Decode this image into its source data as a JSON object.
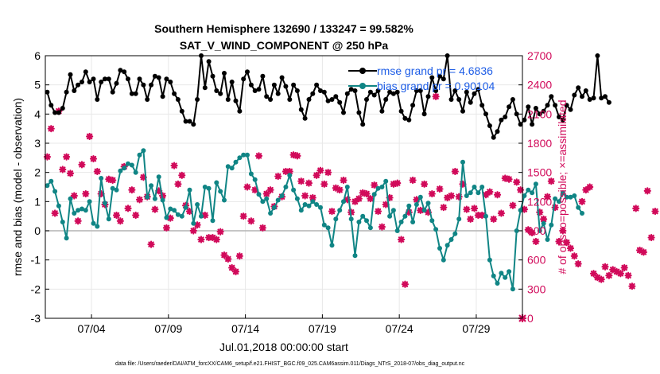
{
  "colors": {
    "rmse": "#000000",
    "bias": "#108585",
    "obs": "#d10a5a",
    "zero_line": "#b4b4b4",
    "grid": "#e8e8e8",
    "legend_text": "#1c5ce6"
  },
  "chart_data": {
    "type": "line",
    "title": "Southern Hemisphere 132690 / 133247 = 99.582%",
    "subtitle": "SAT_V_WIND_COMPONENT @ 250 hPa",
    "xlabel": "Jul.01,2018 00:00:00 start",
    "ylabel": "rmse and bias (model - observation)",
    "y2label": "# of obs: o=possible; ×=assimilated",
    "footer": "data file: /Users/raeder/DAI/ATM_forcXX/CAM6_setup/f.e21.FHIST_BGC.f09_025.CAM6assim.011/Diags_NTrS_2018-07/obs_diag_output.nc",
    "xlim": [
      1,
      32
    ],
    "ylim": [
      -3,
      6
    ],
    "y2lim": [
      0,
      2700
    ],
    "x_ticks": [
      4,
      9,
      14,
      19,
      24,
      29
    ],
    "x_tick_labels": [
      "07/04",
      "07/09",
      "07/14",
      "07/19",
      "07/24",
      "07/29"
    ],
    "y_ticks": [
      "-3",
      "-2",
      "-1",
      "0",
      "1",
      "2",
      "3",
      "4",
      "5",
      "6"
    ],
    "y2_ticks": [
      "0",
      "300",
      "600",
      "900",
      "1200",
      "1500",
      "1800",
      "2100",
      "2400",
      "2700"
    ],
    "x_start": 1.125,
    "x_step": 0.25,
    "legend": [
      "rmse grand pr = 4.6836",
      "bias grand pr = 0.90104"
    ],
    "series": [
      {
        "name": "rmse",
        "values": [
          4.75,
          4.3,
          4.05,
          4.05,
          4.2,
          4.75,
          5.35,
          4.8,
          5.0,
          5.1,
          5.45,
          5.1,
          5.2,
          4.5,
          5.1,
          5.2,
          5.2,
          4.75,
          5.05,
          5.5,
          5.45,
          5.2,
          4.7,
          4.7,
          5.2,
          5.0,
          4.5,
          5.0,
          5.3,
          5.25,
          4.6,
          5.2,
          5.1,
          4.7,
          4.5,
          4.1,
          3.75,
          3.75,
          3.65,
          4.5,
          6.0,
          4.9,
          5.8,
          5.3,
          4.8,
          4.7,
          5.4,
          4.5,
          5.1,
          4.45,
          4.1,
          5.2,
          5.45,
          5.0,
          4.8,
          4.85,
          5.3,
          4.6,
          4.5,
          5.0,
          4.7,
          5.25,
          4.95,
          4.5,
          5.0,
          4.8,
          4.15,
          3.85,
          4.5,
          4.7,
          5.0,
          4.8,
          4.75,
          4.45,
          4.5,
          4.6,
          4.4,
          4.05,
          4.7,
          4.85,
          4.8,
          4.05,
          3.65,
          4.5,
          4.75,
          4.65,
          4.8,
          4.1,
          4.5,
          4.75,
          4.7,
          4.75,
          4.1,
          3.85,
          3.8,
          4.3,
          4.8,
          4.8,
          4.0,
          4.6,
          5.25,
          4.8,
          5.3,
          5.2,
          6.0,
          4.5,
          4.8,
          4.5,
          4.1,
          4.75,
          4.4,
          4.7,
          4.85,
          4.3,
          4.0,
          3.6,
          3.2,
          3.4,
          3.8,
          3.9,
          4.25,
          4.5,
          4.0,
          3.65,
          3.8,
          4.25,
          3.65,
          4.2,
          4.0,
          4.1,
          4.3,
          4.6,
          4.3,
          3.9,
          3.8,
          4.3,
          4.15,
          4.65,
          4.9,
          4.6,
          4.8,
          4.5,
          4.55,
          6.0,
          4.55,
          4.6,
          4.4
        ]
      },
      {
        "name": "bias",
        "values": [
          1.55,
          1.7,
          1.35,
          0.85,
          0.3,
          -0.25,
          1.1,
          0.6,
          0.7,
          0.75,
          0.7,
          1.0,
          0.25,
          0.15,
          1.8,
          0.95,
          0.4,
          1.45,
          1.4,
          2.05,
          2.15,
          2.3,
          2.25,
          2.0,
          2.6,
          2.75,
          1.15,
          1.55,
          1.1,
          1.85,
          1.05,
          0.45,
          0.75,
          0.7,
          0.55,
          0.5,
          0.8,
          1.4,
          0.25,
          0.9,
          0.5,
          1.5,
          1.45,
          0.35,
          1.65,
          1.35,
          1.05,
          2.2,
          2.15,
          2.35,
          2.5,
          2.6,
          2.6,
          1.95,
          1.75,
          1.25,
          1.0,
          1.1,
          0.6,
          0.8,
          1.05,
          1.2,
          1.5,
          1.9,
          1.4,
          1.1,
          0.7,
          0.9,
          0.85,
          1.0,
          0.9,
          0.8,
          0.2,
          0.1,
          -0.5,
          0.4,
          0.7,
          1.0,
          1.5,
          0.4,
          -0.85,
          0.3,
          0.5,
          0.35,
          0.1,
          1.25,
          1.45,
          1.5,
          1.7,
          0.5,
          0.7,
          0.0,
          0.3,
          0.5,
          0.85,
          0.3,
          0.9,
          1.15,
          0.7,
          0.95,
          0.35,
          0.05,
          -0.6,
          -1.0,
          -0.5,
          -0.3,
          -0.1,
          0.4,
          2.35,
          1.2,
          1.3,
          1.5,
          1.3,
          1.5,
          0.5,
          -1.0,
          -1.55,
          -1.8,
          -1.45,
          -1.6,
          -1.4,
          -2.0,
          0.0,
          0.7,
          1.2,
          1.4,
          1.3,
          1.6,
          0.0,
          0.25,
          -0.3,
          0.2,
          1.1,
          1.0,
          1.3,
          1.15,
          1.15,
          1.2,
          0.8,
          0.6
        ]
      },
      {
        "name": "obs_possible",
        "values": [
          1660,
          1950,
          1080,
          2130,
          1530,
          1660,
          1490,
          1260,
          1000,
          1580,
          1280,
          1870,
          1640,
          1510,
          1280,
          1170,
          1430,
          1420,
          1060,
          1000,
          1560,
          1130,
          1320,
          1060,
          1220,
          1450,
          1250,
          760,
          1120,
          1310,
          1260,
          930,
          1030,
          1570,
          1380,
          1470,
          1160,
          1100,
          900,
          960,
          810,
          1060,
          830,
          830,
          810,
          890,
          650,
          610,
          520,
          480,
          640,
          1050,
          1350,
          1000,
          1320,
          1670,
          930,
          1280,
          1320,
          1150,
          1460,
          1250,
          1510,
          1510,
          1680,
          1670,
          1410,
          1260,
          1390,
          1240,
          1470,
          1520,
          1380,
          1500,
          1100,
          1340,
          1320,
          1420,
          1220,
          1090,
          1200,
          1230,
          1290,
          1280,
          1230,
          1370,
          1100,
          940,
          1170,
          1240,
          1380,
          1390,
          810,
          350,
          1090,
          1420,
          1220,
          1110,
          1380,
          1090,
          1280,
          2280,
          1330,
          1140,
          1240,
          1260,
          1510,
          1250,
          1380,
          1120,
          1020,
          1130,
          1060,
          1060,
          1270,
          1300,
          1020,
          1270,
          1080,
          1440,
          1430,
          1160,
          1400,
          1320,
          1120,
          910,
          880,
          790,
          1090,
          1020,
          1250,
          1410,
          1140,
          790,
          900,
          780,
          720,
          640,
          560,
          1200,
          1320,
          1350,
          460,
          420,
          400,
          530,
          440,
          500,
          480,
          460,
          520,
          440,
          330,
          1130,
          700,
          680,
          1310,
          830,
          1100
        ]
      }
    ]
  }
}
